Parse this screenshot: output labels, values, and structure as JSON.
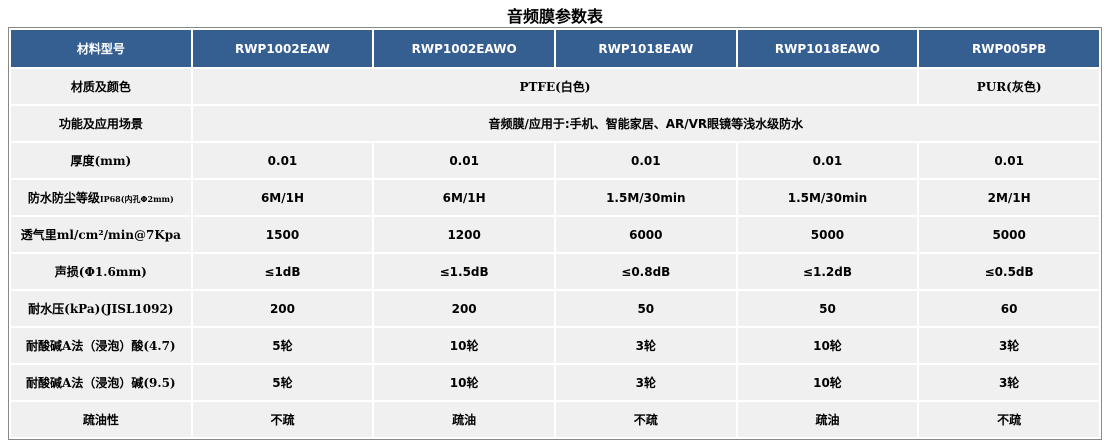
{
  "title": "音频膜参数表",
  "header": [
    "材料型号",
    "RWP1002EAW",
    "RWP1002EAWO",
    "RWP1018EAW",
    "RWP1018EAWO",
    "RWP005PB"
  ],
  "material_row": {
    "label": "材质及颜色",
    "ptfe": "PTFE(白色)",
    "pur": "PUR(灰色)"
  },
  "application_row": {
    "label": "功能及应用场景",
    "value": "音频膜/应用于:手机、智能家居、AR/VR眼镜等浅水级防水"
  },
  "rows": [
    {
      "label": "厚度(mm)",
      "values": [
        "0.01",
        "0.01",
        "0.01",
        "0.01",
        "0.01"
      ]
    },
    {
      "label": "防水防尘等级",
      "label_small": "IP68(内孔Φ2mm)",
      "values": [
        "6M/1H",
        "6M/1H",
        "1.5M/30min",
        "1.5M/30min",
        "2M/1H"
      ]
    },
    {
      "label": "透气里ml/cm²/min@7Kpa",
      "values": [
        "1500",
        "1200",
        "6000",
        "5000",
        "5000"
      ]
    },
    {
      "label": "声损(Φ1.6mm)",
      "values": [
        "≤1dB",
        "≤1.5dB",
        "≤0.8dB",
        "≤1.2dB",
        "≤0.5dB"
      ]
    },
    {
      "label": "耐水压(kPa)(JISL1092)",
      "values": [
        "200",
        "200",
        "50",
        "50",
        "60"
      ]
    },
    {
      "label": "耐酸碱A法（浸泡）酸(4.7)",
      "values": [
        "5轮",
        "10轮",
        "3轮",
        "10轮",
        "3轮"
      ]
    },
    {
      "label": "耐酸碱A法（浸泡）碱(9.5)",
      "values": [
        "5轮",
        "10轮",
        "3轮",
        "10轮",
        "3轮"
      ]
    },
    {
      "label": "疏油性",
      "values": [
        "不疏",
        "疏油",
        "不疏",
        "疏油",
        "不疏"
      ]
    }
  ]
}
